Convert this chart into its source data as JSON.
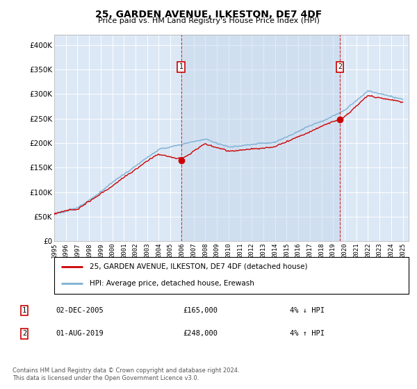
{
  "title": "25, GARDEN AVENUE, ILKESTON, DE7 4DF",
  "subtitle": "Price paid vs. HM Land Registry's House Price Index (HPI)",
  "ylabel_ticks": [
    "£0",
    "£50K",
    "£100K",
    "£150K",
    "£200K",
    "£250K",
    "£300K",
    "£350K",
    "£400K"
  ],
  "ytick_vals": [
    0,
    50000,
    100000,
    150000,
    200000,
    250000,
    300000,
    350000,
    400000
  ],
  "ylim": [
    0,
    420000
  ],
  "xlim_start": 1995.0,
  "xlim_end": 2025.5,
  "hpi_color": "#7bafd4",
  "sale_color": "#cc0000",
  "plot_bg": "#dce8f5",
  "shade_color": "#c5d8ec",
  "marker1_year": 2005.92,
  "marker1_price": 165000,
  "marker1_label": "1",
  "marker1_date": "02-DEC-2005",
  "marker1_price_str": "£165,000",
  "marker1_hpi_str": "4% ↓ HPI",
  "marker2_year": 2019.58,
  "marker2_price": 248000,
  "marker2_label": "2",
  "marker2_date": "01-AUG-2019",
  "marker2_price_str": "£248,000",
  "marker2_hpi_str": "4% ↑ HPI",
  "legend_line1": "25, GARDEN AVENUE, ILKESTON, DE7 4DF (detached house)",
  "legend_line2": "HPI: Average price, detached house, Erewash",
  "footer": "Contains HM Land Registry data © Crown copyright and database right 2024.\nThis data is licensed under the Open Government Licence v3.0."
}
